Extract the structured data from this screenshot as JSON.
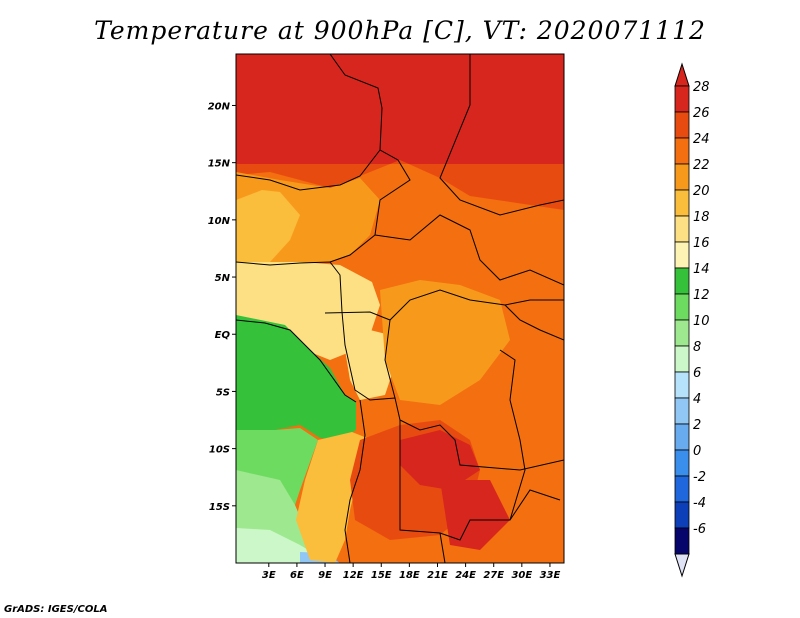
{
  "title": "Temperature at 900hPa [C], VT: 2020071112",
  "credit": "GrADS: IGES/COLA",
  "map": {
    "variable": "Temperature at 900hPa",
    "units": "C",
    "valid_time": "2020071112",
    "lon_range": [
      -0.5,
      34.5
    ],
    "lat_range": [
      -20,
      24.5
    ],
    "lat_ticks": [
      {
        "value": 20,
        "label": "20N"
      },
      {
        "value": 15,
        "label": "15N"
      },
      {
        "value": 10,
        "label": "10N"
      },
      {
        "value": 5,
        "label": "5N"
      },
      {
        "value": 0,
        "label": "EQ"
      },
      {
        "value": -5,
        "label": "5S"
      },
      {
        "value": -10,
        "label": "10S"
      },
      {
        "value": -15,
        "label": "15S"
      }
    ],
    "lon_ticks": [
      {
        "value": 3,
        "label": "3E"
      },
      {
        "value": 6,
        "label": "6E"
      },
      {
        "value": 9,
        "label": "9E"
      },
      {
        "value": 12,
        "label": "12E"
      },
      {
        "value": 15,
        "label": "15E"
      },
      {
        "value": 18,
        "label": "18E"
      },
      {
        "value": 21,
        "label": "21E"
      },
      {
        "value": 24,
        "label": "24E"
      },
      {
        "value": 27,
        "label": "27E"
      },
      {
        "value": 30,
        "label": "30E"
      },
      {
        "value": 33,
        "label": "33E"
      }
    ]
  },
  "colorbar": {
    "levels": [
      "28",
      "26",
      "24",
      "22",
      "20",
      "18",
      "16",
      "14",
      "12",
      "10",
      "8",
      "6",
      "4",
      "2",
      "0",
      "-2",
      "-4",
      "-6"
    ],
    "colors": [
      "#d7261e",
      "#e84b10",
      "#f36f10",
      "#f79a1c",
      "#fbbd3c",
      "#fde083",
      "#fdf3b4",
      "#36c13b",
      "#6ddb60",
      "#9ee98f",
      "#ccf7c9",
      "#b6e3fb",
      "#90c7f5",
      "#68abef",
      "#3b8fec",
      "#1f67dc",
      "#0d3fb8",
      "#06056b"
    ],
    "top_triangle_color": "#d7261e",
    "bottom_triangle_color": "#e0e2f6"
  }
}
